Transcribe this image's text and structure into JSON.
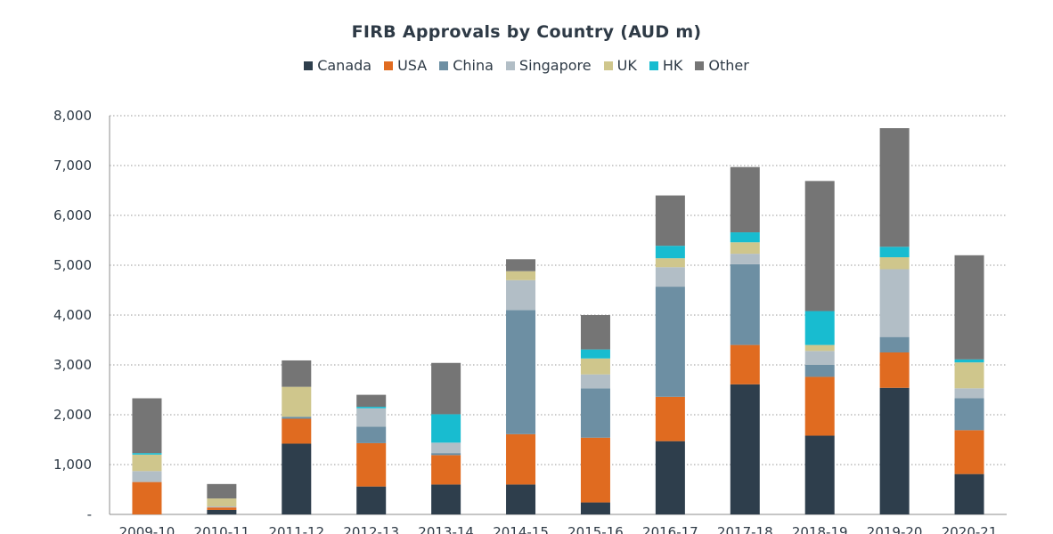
{
  "chart_data": {
    "type": "bar",
    "stacked": true,
    "title": "FIRB Approvals by Country (AUD m)",
    "xlabel": "",
    "ylabel": "",
    "ylim": [
      0,
      8000
    ],
    "yticks": [
      0,
      1000,
      2000,
      3000,
      4000,
      5000,
      6000,
      7000,
      8000
    ],
    "ytick_labels": [
      "-",
      "1,000",
      "2,000",
      "3,000",
      "4,000",
      "5,000",
      "6,000",
      "7,000",
      "8,000"
    ],
    "grid": "horizontal dotted",
    "legend_position": "top",
    "categories": [
      "2009-10",
      "2010-11",
      "2011-12",
      "2012-13",
      "2013-14",
      "2014-15",
      "2015-16",
      "2016-17",
      "2017-18",
      "2018-19",
      "2019-20",
      "2020-21"
    ],
    "series": [
      {
        "name": "Canada",
        "color": "#2e3e4c",
        "values": [
          0,
          90,
          1420,
          560,
          600,
          600,
          240,
          1470,
          2610,
          1580,
          2540,
          810
        ]
      },
      {
        "name": "USA",
        "color": "#e06b20",
        "values": [
          650,
          50,
          500,
          870,
          590,
          1010,
          1300,
          890,
          790,
          1180,
          710,
          880
        ]
      },
      {
        "name": "China",
        "color": "#6d8fa3",
        "values": [
          0,
          0,
          40,
          330,
          40,
          2490,
          990,
          2210,
          1620,
          240,
          310,
          640
        ]
      },
      {
        "name": "Singapore",
        "color": "#b2bec6",
        "values": [
          220,
          20,
          0,
          370,
          210,
          600,
          280,
          390,
          210,
          280,
          1360,
          200
        ]
      },
      {
        "name": "UK",
        "color": "#cfc68c",
        "values": [
          330,
          160,
          600,
          0,
          0,
          180,
          320,
          180,
          230,
          120,
          240,
          520
        ]
      },
      {
        "name": "HK",
        "color": "#18bcd0",
        "values": [
          30,
          0,
          0,
          30,
          570,
          0,
          180,
          250,
          200,
          680,
          210,
          60
        ]
      },
      {
        "name": "Other",
        "color": "#757575",
        "values": [
          1100,
          290,
          530,
          240,
          1030,
          240,
          690,
          1010,
          1310,
          2610,
          2380,
          2090
        ]
      }
    ]
  }
}
